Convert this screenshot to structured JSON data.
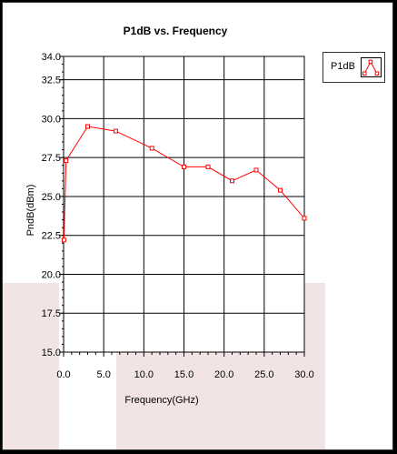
{
  "chart_data": {
    "type": "line",
    "title": "P1dB vs. Frequency",
    "xlabel": "Frequency(GHz)",
    "ylabel": "PndB(dBm)",
    "xlim": [
      0,
      30
    ],
    "ylim": [
      15,
      34
    ],
    "x_ticks": [
      "0.0",
      "5.0",
      "10.0",
      "15.0",
      "20.0",
      "25.0",
      "30.0"
    ],
    "y_ticks": [
      {
        "value": 15,
        "label": "15.0"
      },
      {
        "value": 17.5,
        "label": "17.5"
      },
      {
        "value": 20,
        "label": "20.0"
      },
      {
        "value": 22.5,
        "label": "22.5"
      },
      {
        "value": 25,
        "label": "25.0"
      },
      {
        "value": 27.5,
        "label": "27.5"
      },
      {
        "value": 30,
        "label": "30.0"
      },
      {
        "value": 32.5,
        "label": "32.5"
      },
      {
        "value": 34,
        "label": "34.0"
      }
    ],
    "grid": true,
    "legend_position": "right",
    "series": [
      {
        "name": "P1dB",
        "color": "#ff0000",
        "marker": "square",
        "x": [
          0.05,
          0.3,
          3.0,
          6.5,
          11.0,
          15.0,
          18.0,
          21.0,
          24.0,
          27.0,
          30.0
        ],
        "y": [
          22.2,
          27.3,
          29.5,
          29.2,
          28.1,
          26.9,
          26.9,
          26.0,
          26.7,
          25.4,
          23.6
        ]
      }
    ]
  }
}
